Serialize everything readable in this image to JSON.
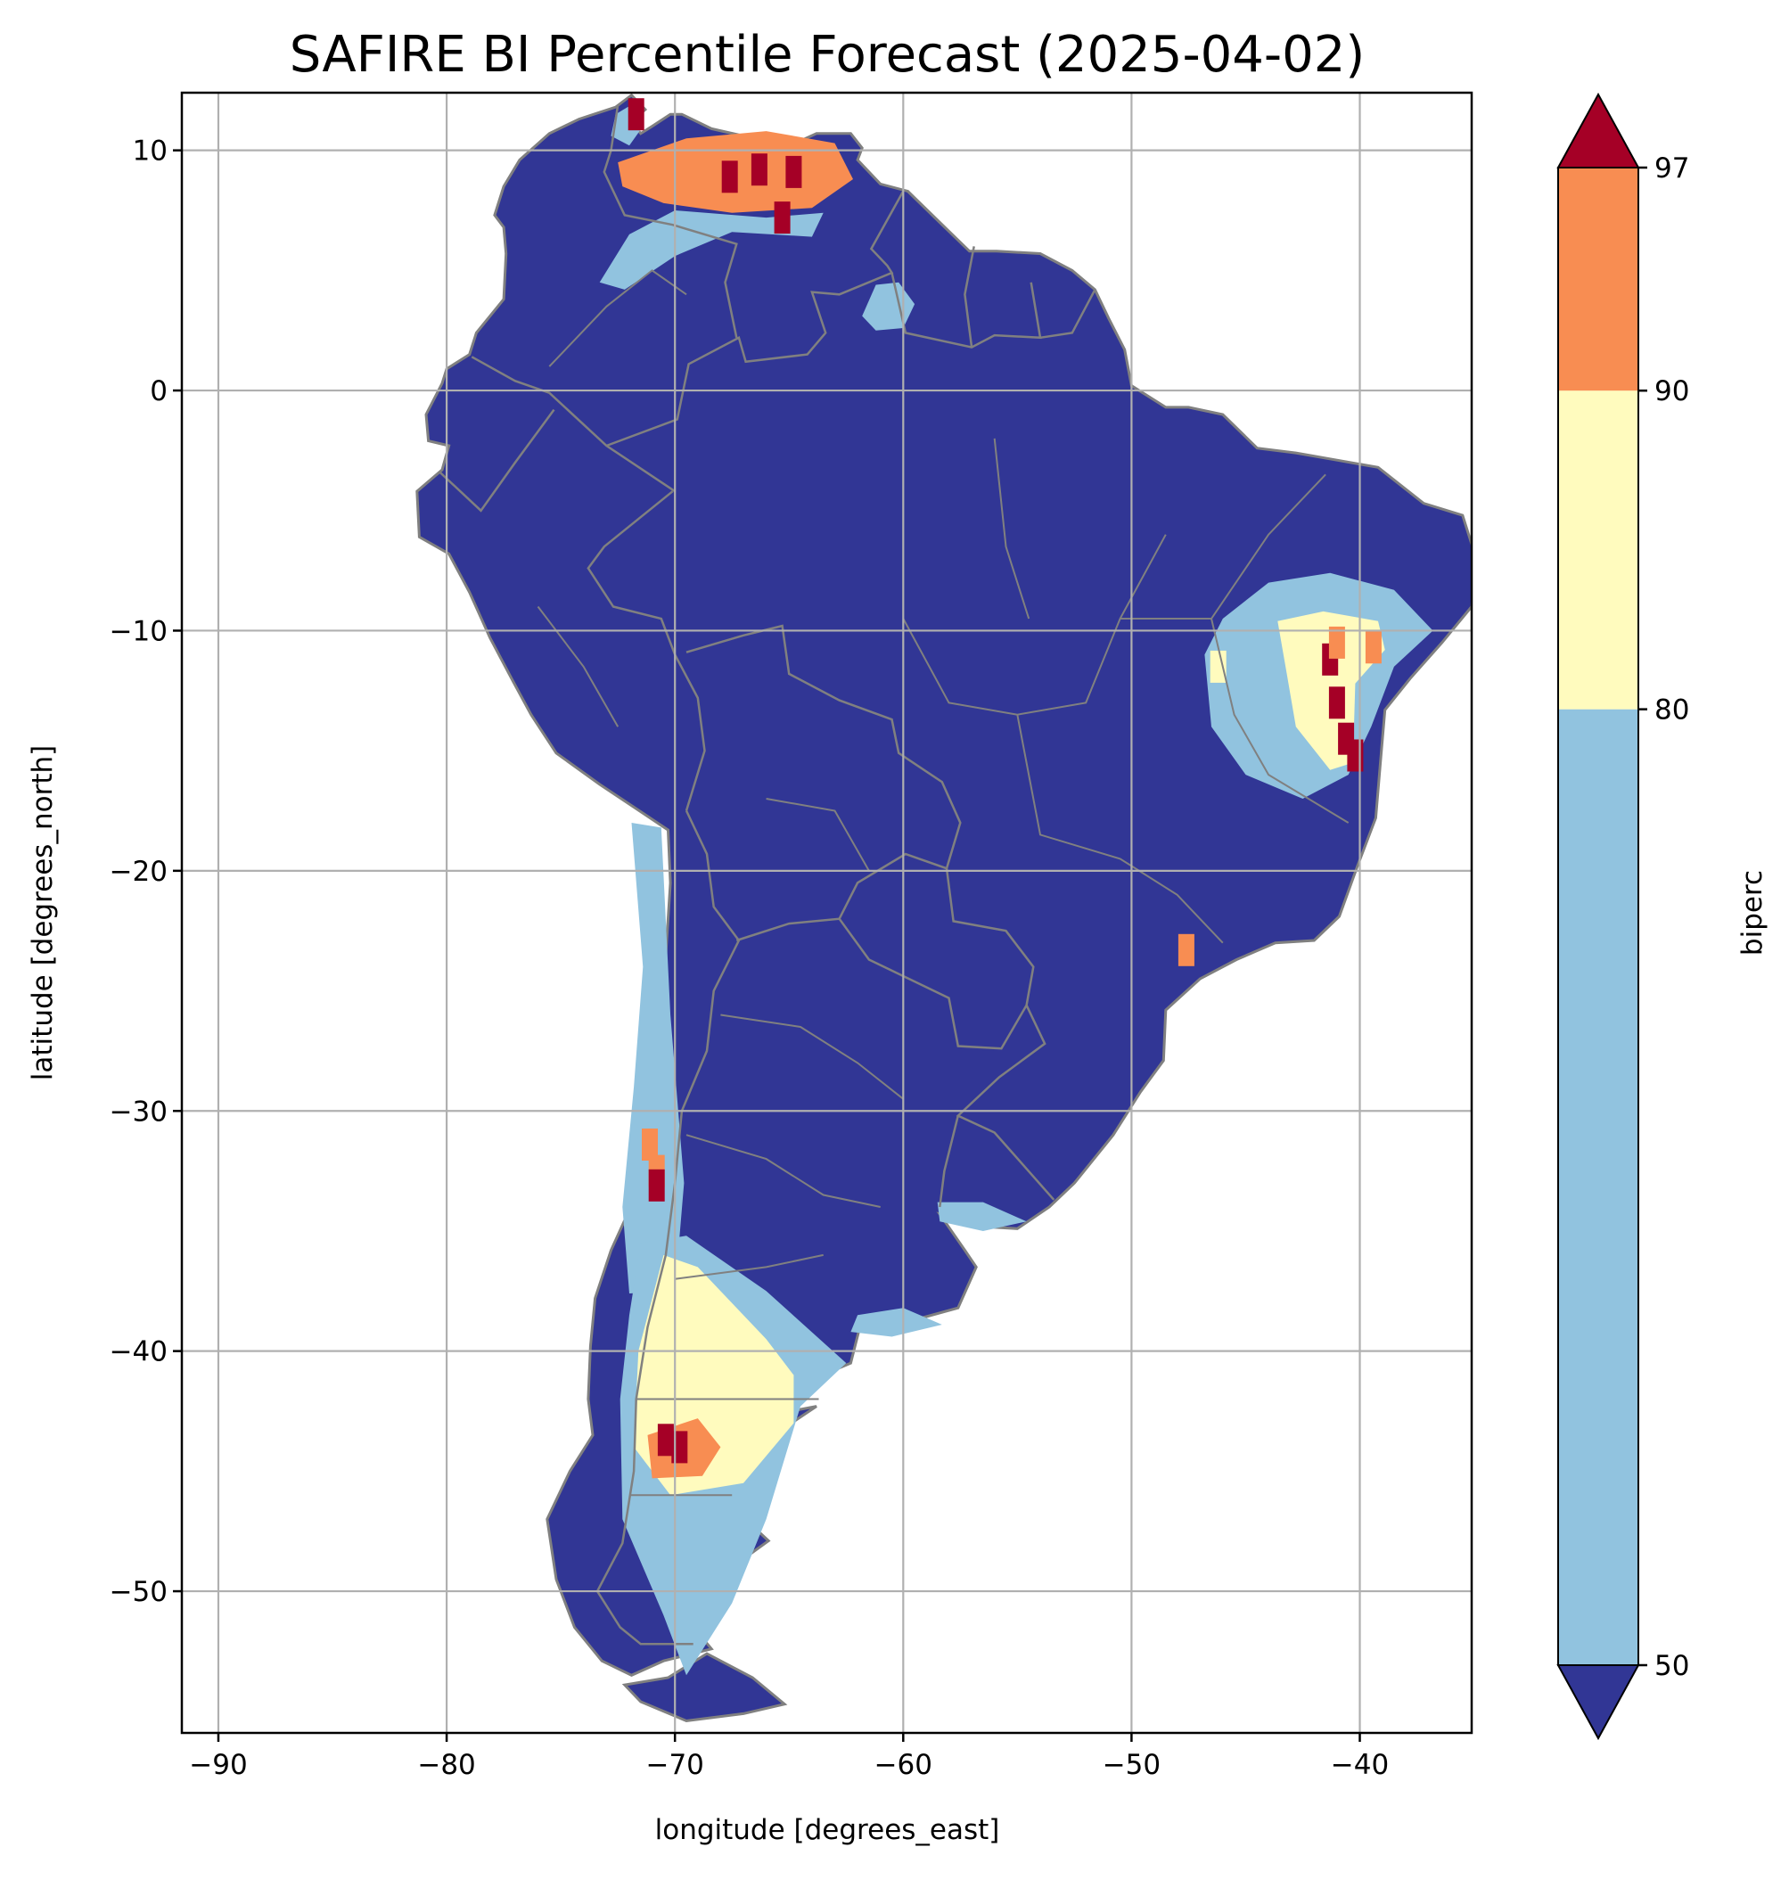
{
  "chart_data": {
    "type": "heatmap",
    "title": "SAFIRE BI Percentile Forecast (2025-04-02)",
    "xlabel": "longitude [degrees_east]",
    "ylabel": "latitude [degrees_north]",
    "xlim": [
      -91.6,
      -35.1
    ],
    "ylim": [
      -55.9,
      12.4
    ],
    "x_ticks": [
      -90,
      -80,
      -70,
      -60,
      -50,
      -40
    ],
    "y_ticks": [
      10,
      0,
      -10,
      -20,
      -30,
      -40,
      -50
    ],
    "x_tick_labels": [
      "−90",
      "−80",
      "−70",
      "−60",
      "−50",
      "−40"
    ],
    "y_tick_labels": [
      "10",
      "0",
      "−10",
      "−20",
      "−30",
      "−40",
      "−50"
    ],
    "grid": true,
    "colorbar": {
      "label": "biperc",
      "boundaries": [
        50,
        80,
        90,
        97
      ],
      "tick_labels": [
        "50",
        "80",
        "90",
        "97"
      ],
      "extend": "both",
      "colors": {
        "under": "#313695",
        "50-80": "#91c3df",
        "80-90": "#fffbbe",
        "90-97": "#f88d52",
        "over": "#a50026"
      }
    },
    "land_color": "#313695",
    "border_color": "#808080",
    "regions": [
      {
        "name": "north-venezuela",
        "category": "90-97",
        "polygon": [
          [
            -72.5,
            9.5
          ],
          [
            -69.5,
            10.5
          ],
          [
            -66,
            10.8
          ],
          [
            -63,
            10.3
          ],
          [
            -62.2,
            8.8
          ],
          [
            -64,
            7.6
          ],
          [
            -67.5,
            7.4
          ],
          [
            -70.5,
            7.8
          ],
          [
            -72.3,
            8.5
          ]
        ]
      },
      {
        "name": "llanos",
        "category": "50-80",
        "polygon": [
          [
            -73.3,
            4.5
          ],
          [
            -72,
            6.5
          ],
          [
            -70,
            7.5
          ],
          [
            -66,
            7.2
          ],
          [
            -63.5,
            7.4
          ],
          [
            -64,
            6.4
          ],
          [
            -67.5,
            6.6
          ],
          [
            -70,
            5.6
          ],
          [
            -72.2,
            4.2
          ]
        ]
      },
      {
        "name": "guiana-highlands",
        "category": "50-80",
        "polygon": [
          [
            -61.8,
            3.1
          ],
          [
            -61.2,
            4.4
          ],
          [
            -60.2,
            4.5
          ],
          [
            -59.5,
            3.6
          ],
          [
            -60,
            2.6
          ],
          [
            -61.2,
            2.5
          ]
        ]
      },
      {
        "name": "bahia-outer",
        "category": "50-80",
        "polygon": [
          [
            -46,
            -9.5
          ],
          [
            -44,
            -8
          ],
          [
            -41.3,
            -7.6
          ],
          [
            -38.5,
            -8.3
          ],
          [
            -36.8,
            -10
          ],
          [
            -38.5,
            -11.5
          ],
          [
            -39.5,
            -14
          ],
          [
            -40.5,
            -16
          ],
          [
            -42.5,
            -17
          ],
          [
            -45,
            -16
          ],
          [
            -46.5,
            -14
          ],
          [
            -46.8,
            -11
          ]
        ]
      },
      {
        "name": "bahia-inner",
        "category": "80-90",
        "polygon": [
          [
            -43.6,
            -9.6
          ],
          [
            -41.6,
            -9.2
          ],
          [
            -39.2,
            -9.6
          ],
          [
            -38.9,
            -10.8
          ],
          [
            -40.2,
            -12.2
          ],
          [
            -40.3,
            -15.5
          ],
          [
            -41.3,
            -15.8
          ],
          [
            -42.8,
            -14
          ],
          [
            -43.2,
            -11.8
          ]
        ]
      },
      {
        "name": "chile-central",
        "category": "50-80",
        "polygon": [
          [
            -71.9,
            -18
          ],
          [
            -70.6,
            -18.2
          ],
          [
            -70.2,
            -26
          ],
          [
            -69.6,
            -33
          ],
          [
            -70,
            -37.5
          ],
          [
            -72,
            -37.6
          ],
          [
            -72.3,
            -34
          ],
          [
            -71.8,
            -29
          ],
          [
            -71.4,
            -24
          ]
        ]
      },
      {
        "name": "patagonia-outer",
        "category": "50-80",
        "polygon": [
          [
            -71.5,
            -35.5
          ],
          [
            -69.5,
            -35.2
          ],
          [
            -66,
            -37.5
          ],
          [
            -62.5,
            -40.5
          ],
          [
            -64.5,
            -42.3
          ],
          [
            -66,
            -47
          ],
          [
            -67.5,
            -50.5
          ],
          [
            -69.5,
            -53.5
          ],
          [
            -70.5,
            -51
          ],
          [
            -72.3,
            -47
          ],
          [
            -72.4,
            -42
          ],
          [
            -72,
            -38.5
          ]
        ]
      },
      {
        "name": "patagonia-inner",
        "category": "80-90",
        "polygon": [
          [
            -70.5,
            -36
          ],
          [
            -69,
            -36.5
          ],
          [
            -66,
            -39.5
          ],
          [
            -64.8,
            -41
          ],
          [
            -64.8,
            -43
          ],
          [
            -67,
            -45.5
          ],
          [
            -70.2,
            -46
          ],
          [
            -71.8,
            -44
          ],
          [
            -71.6,
            -40
          ]
        ]
      },
      {
        "name": "chubut-hotspot",
        "category": "90-97",
        "polygon": [
          [
            -71.2,
            -43.5
          ],
          [
            -69,
            -42.8
          ],
          [
            -68,
            -44
          ],
          [
            -68.8,
            -45.2
          ],
          [
            -71,
            -45.3
          ]
        ]
      },
      {
        "name": "uruguay-coast",
        "category": "50-80",
        "polygon": [
          [
            -58.5,
            -33.8
          ],
          [
            -56.5,
            -33.8
          ],
          [
            -54.6,
            -34.6
          ],
          [
            -56.5,
            -35
          ],
          [
            -58.4,
            -34.6
          ]
        ]
      },
      {
        "name": "pampas-coast",
        "category": "50-80",
        "polygon": [
          [
            -62,
            -38.5
          ],
          [
            -60,
            -38.2
          ],
          [
            -58.3,
            -38.9
          ],
          [
            -60.5,
            -39.4
          ],
          [
            -62.3,
            -39.2
          ]
        ]
      },
      {
        "name": "colombia-north",
        "category": "50-80",
        "polygon": [
          [
            -72.6,
            11.5
          ],
          [
            -71.9,
            11.9
          ],
          [
            -71.4,
            11
          ],
          [
            -72,
            10.2
          ],
          [
            -72.8,
            10.6
          ]
        ]
      }
    ],
    "hotspots": [
      {
        "lon": -66.3,
        "lat": 9.2,
        "category": "over"
      },
      {
        "lon": -64.8,
        "lat": 9.1,
        "category": "over"
      },
      {
        "lon": -67.6,
        "lat": 8.9,
        "category": "over"
      },
      {
        "lon": -71.7,
        "lat": 11.5,
        "category": "over"
      },
      {
        "lon": -65.3,
        "lat": 7.2,
        "category": "over"
      },
      {
        "lon": -41,
        "lat": -13,
        "category": "over"
      },
      {
        "lon": -40.6,
        "lat": -14.5,
        "category": "over"
      },
      {
        "lon": -41.3,
        "lat": -11.2,
        "category": "over"
      },
      {
        "lon": -40.2,
        "lat": -15.2,
        "category": "over"
      },
      {
        "lon": -39.4,
        "lat": -10.7,
        "category": "90-97"
      },
      {
        "lon": -41,
        "lat": -10.5,
        "category": "90-97"
      },
      {
        "lon": -70.8,
        "lat": -32.5,
        "category": "90-97"
      },
      {
        "lon": -71.1,
        "lat": -31.4,
        "category": "90-97"
      },
      {
        "lon": -70.8,
        "lat": -33.1,
        "category": "over"
      },
      {
        "lon": -69.8,
        "lat": -44,
        "category": "over"
      },
      {
        "lon": -70.4,
        "lat": -43.7,
        "category": "over"
      },
      {
        "lon": -47.6,
        "lat": -23.3,
        "category": "90-97"
      },
      {
        "lon": -46.2,
        "lat": -11.5,
        "category": "80-90"
      }
    ]
  }
}
